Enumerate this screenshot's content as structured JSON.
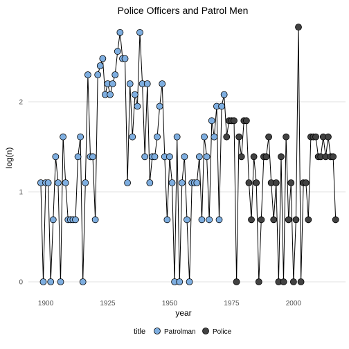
{
  "chart_data": {
    "type": "line",
    "title": "Police Officers and Patrol Men",
    "xlabel": "year",
    "ylabel": "log(n)",
    "xlim": [
      1893,
      2021
    ],
    "ylim": [
      -0.1,
      2.9
    ],
    "x_ticks": [
      1900,
      1925,
      1950,
      1975,
      2000
    ],
    "y_ticks": [
      0,
      1,
      2
    ],
    "x_tick_labels": [
      "1900",
      "1925",
      "1950",
      "1975",
      "2000"
    ],
    "y_tick_labels": [
      "0",
      "1",
      "2"
    ],
    "grid": "horizontal",
    "legend": {
      "title": "title",
      "position": "bottom",
      "entries": [
        {
          "name": "Patrolman",
          "color": "#7eaee0"
        },
        {
          "name": "Police",
          "color": "#424242"
        }
      ]
    },
    "series": [
      {
        "name": "Patrolman",
        "color": "#7eaee0",
        "points": [
          [
            1898,
            1.1
          ],
          [
            1899,
            0
          ],
          [
            1900,
            1.1
          ],
          [
            1901,
            1.1
          ],
          [
            1902,
            0
          ],
          [
            1903,
            0.69
          ],
          [
            1904,
            1.39
          ],
          [
            1905,
            1.1
          ],
          [
            1906,
            0
          ],
          [
            1907,
            1.61
          ],
          [
            1908,
            1.1
          ],
          [
            1909,
            0.69
          ],
          [
            1910,
            0.69
          ],
          [
            1911,
            0.69
          ],
          [
            1912,
            0.69
          ],
          [
            1913,
            1.39
          ],
          [
            1914,
            1.61
          ],
          [
            1915,
            0
          ],
          [
            1916,
            1.1
          ],
          [
            1917,
            2.3
          ],
          [
            1918,
            1.39
          ],
          [
            1919,
            1.39
          ],
          [
            1920,
            0.69
          ],
          [
            1921,
            2.3
          ],
          [
            1922,
            2.4
          ],
          [
            1923,
            2.48
          ],
          [
            1924,
            2.08
          ],
          [
            1925,
            2.2
          ],
          [
            1926,
            2.08
          ],
          [
            1927,
            2.2
          ],
          [
            1928,
            2.3
          ],
          [
            1929,
            2.56
          ],
          [
            1930,
            2.77
          ],
          [
            1931,
            2.48
          ],
          [
            1932,
            2.48
          ],
          [
            1933,
            1.1
          ],
          [
            1934,
            2.2
          ],
          [
            1935,
            1.61
          ],
          [
            1936,
            2.08
          ],
          [
            1937,
            1.95
          ],
          [
            1938,
            2.77
          ],
          [
            1939,
            2.2
          ],
          [
            1940,
            1.39
          ],
          [
            1941,
            2.2
          ],
          [
            1942,
            1.1
          ],
          [
            1943,
            1.39
          ],
          [
            1944,
            1.39
          ],
          [
            1945,
            1.61
          ],
          [
            1946,
            1.95
          ],
          [
            1947,
            2.2
          ],
          [
            1948,
            1.39
          ],
          [
            1949,
            0.69
          ],
          [
            1950,
            1.39
          ],
          [
            1951,
            1.1
          ],
          [
            1952,
            0
          ],
          [
            1953,
            1.61
          ],
          [
            1954,
            0
          ],
          [
            1955,
            1.1
          ],
          [
            1956,
            1.39
          ],
          [
            1957,
            0.69
          ],
          [
            1958,
            0
          ],
          [
            1959,
            1.1
          ],
          [
            1960,
            1.1
          ],
          [
            1961,
            1.1
          ],
          [
            1962,
            1.39
          ],
          [
            1963,
            0.69
          ],
          [
            1964,
            1.61
          ],
          [
            1965,
            1.39
          ],
          [
            1966,
            0.69
          ],
          [
            1967,
            1.79
          ],
          [
            1968,
            1.61
          ],
          [
            1969,
            1.95
          ],
          [
            1970,
            0.69
          ],
          [
            1971,
            1.95
          ],
          [
            1972,
            2.08
          ]
        ]
      },
      {
        "name": "Police",
        "color": "#424242",
        "points": [
          [
            1973,
            1.61
          ],
          [
            1974,
            1.79
          ],
          [
            1975,
            1.79
          ],
          [
            1976,
            1.79
          ],
          [
            1977,
            0
          ],
          [
            1978,
            1.61
          ],
          [
            1979,
            1.39
          ],
          [
            1980,
            1.79
          ],
          [
            1981,
            1.79
          ],
          [
            1982,
            1.1
          ],
          [
            1983,
            0.69
          ],
          [
            1984,
            1.39
          ],
          [
            1985,
            1.1
          ],
          [
            1986,
            0
          ],
          [
            1987,
            0.69
          ],
          [
            1988,
            1.39
          ],
          [
            1989,
            1.39
          ],
          [
            1990,
            1.61
          ],
          [
            1991,
            1.1
          ],
          [
            1992,
            0.69
          ],
          [
            1993,
            1.1
          ],
          [
            1994,
            0
          ],
          [
            1995,
            1.39
          ],
          [
            1996,
            0
          ],
          [
            1997,
            1.61
          ],
          [
            1998,
            0.69
          ],
          [
            1999,
            1.1
          ],
          [
            2000,
            0
          ],
          [
            2001,
            0.69
          ],
          [
            2002,
            2.83
          ],
          [
            2003,
            0
          ],
          [
            2004,
            1.1
          ],
          [
            2005,
            1.1
          ],
          [
            2006,
            0.69
          ],
          [
            2007,
            1.61
          ],
          [
            2008,
            1.61
          ],
          [
            2009,
            1.61
          ],
          [
            2010,
            1.39
          ],
          [
            2011,
            1.39
          ],
          [
            2012,
            1.61
          ],
          [
            2013,
            1.39
          ],
          [
            2014,
            1.61
          ],
          [
            2015,
            1.39
          ],
          [
            2016,
            1.39
          ],
          [
            2017,
            0.69
          ]
        ]
      }
    ]
  }
}
